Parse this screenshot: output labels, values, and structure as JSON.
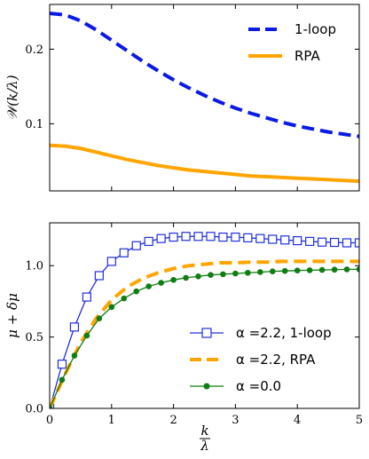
{
  "chart_data": [
    {
      "type": "line",
      "xlabel": "",
      "ylabel": "𝒲(k/λ)",
      "xlim": [
        0,
        5
      ],
      "ylim": [
        0.01,
        0.26
      ],
      "x_ticks": [
        0,
        1,
        2,
        3,
        4,
        5
      ],
      "y_ticks": [
        0.1,
        0.2
      ],
      "y_tick_labels": [
        "0.1",
        "0.2"
      ],
      "grid": false,
      "legend_position": "top-right",
      "series": [
        {
          "name": "1-loop",
          "color": "#0a1ae6",
          "style": "dashed",
          "x": [
            0,
            0.25,
            0.5,
            0.75,
            1.0,
            1.25,
            1.5,
            1.75,
            2.0,
            2.25,
            2.5,
            2.75,
            3.0,
            3.25,
            3.5,
            3.75,
            4.0,
            4.25,
            4.5,
            4.75,
            5.0
          ],
          "y": [
            0.248,
            0.246,
            0.238,
            0.226,
            0.212,
            0.198,
            0.184,
            0.171,
            0.159,
            0.148,
            0.138,
            0.129,
            0.121,
            0.114,
            0.108,
            0.102,
            0.097,
            0.093,
            0.089,
            0.086,
            0.083
          ]
        },
        {
          "name": "RPA",
          "color": "#ffa500",
          "style": "solid",
          "x": [
            0,
            0.25,
            0.5,
            0.75,
            1.0,
            1.25,
            1.5,
            1.75,
            2.0,
            2.25,
            2.5,
            2.75,
            3.0,
            3.25,
            3.5,
            3.75,
            4.0,
            4.25,
            4.5,
            4.75,
            5.0
          ],
          "y": [
            0.071,
            0.07,
            0.067,
            0.062,
            0.057,
            0.052,
            0.048,
            0.044,
            0.041,
            0.038,
            0.036,
            0.034,
            0.032,
            0.03,
            0.029,
            0.028,
            0.027,
            0.026,
            0.025,
            0.024,
            0.023
          ]
        }
      ]
    },
    {
      "type": "line",
      "xlabel": "k/λ",
      "xlabel_num": "k",
      "xlabel_den": "λ",
      "ylabel": "μ + δμ",
      "xlim": [
        0,
        5
      ],
      "ylim": [
        0,
        1.3
      ],
      "x_ticks": [
        0,
        1,
        2,
        3,
        4,
        5
      ],
      "x_tick_labels": [
        "0",
        "1",
        "2",
        "3",
        "4",
        "5"
      ],
      "y_ticks": [
        0,
        0.5,
        1.0
      ],
      "y_tick_labels": [
        "0.0",
        "0.5",
        "1.0"
      ],
      "grid": false,
      "legend_position": "bottom-right",
      "series": [
        {
          "name": "α =2.2, 1-loop",
          "color": "#1f2ee0",
          "style": "solid",
          "marker": "open-square",
          "x": [
            0,
            0.2,
            0.4,
            0.6,
            0.8,
            1.0,
            1.2,
            1.4,
            1.6,
            1.8,
            2.0,
            2.2,
            2.4,
            2.6,
            2.8,
            3.0,
            3.2,
            3.4,
            3.6,
            3.8,
            4.0,
            4.2,
            4.4,
            4.6,
            4.8,
            5.0
          ],
          "y": [
            0.0,
            0.31,
            0.57,
            0.78,
            0.93,
            1.03,
            1.09,
            1.14,
            1.17,
            1.19,
            1.2,
            1.205,
            1.205,
            1.205,
            1.2,
            1.2,
            1.195,
            1.19,
            1.185,
            1.18,
            1.175,
            1.17,
            1.165,
            1.163,
            1.16,
            1.16
          ]
        },
        {
          "name": "α =2.2, RPA",
          "color": "#ffa500",
          "style": "dashed",
          "x": [
            0,
            0.25,
            0.5,
            0.75,
            1.0,
            1.25,
            1.5,
            1.75,
            2.0,
            2.25,
            2.5,
            2.75,
            3.0,
            3.25,
            3.5,
            3.75,
            4.0,
            4.25,
            4.5,
            4.75,
            5.0
          ],
          "y": [
            0.0,
            0.24,
            0.46,
            0.63,
            0.76,
            0.85,
            0.91,
            0.95,
            0.98,
            1.0,
            1.01,
            1.02,
            1.02,
            1.025,
            1.025,
            1.03,
            1.03,
            1.03,
            1.03,
            1.03,
            1.03
          ]
        },
        {
          "name": "α =0.0",
          "color": "#0e7d12",
          "style": "solid",
          "marker": "filled-circle",
          "x": [
            0,
            0.2,
            0.4,
            0.6,
            0.8,
            1.0,
            1.2,
            1.4,
            1.6,
            1.8,
            2.0,
            2.2,
            2.4,
            2.6,
            2.8,
            3.0,
            3.2,
            3.4,
            3.6,
            3.8,
            4.0,
            4.2,
            4.4,
            4.6,
            4.8,
            5.0
          ],
          "y": [
            0.0,
            0.2,
            0.37,
            0.51,
            0.63,
            0.71,
            0.77,
            0.82,
            0.855,
            0.88,
            0.9,
            0.915,
            0.925,
            0.935,
            0.94,
            0.945,
            0.95,
            0.955,
            0.96,
            0.963,
            0.966,
            0.968,
            0.97,
            0.972,
            0.974,
            0.975
          ]
        }
      ]
    }
  ]
}
